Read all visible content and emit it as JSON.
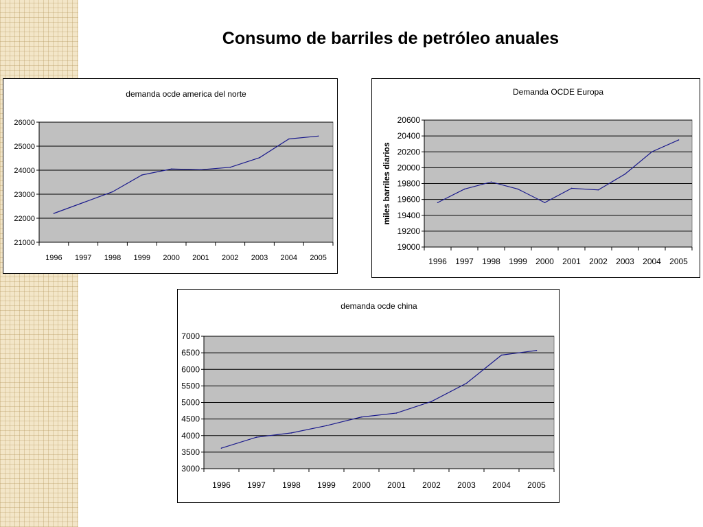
{
  "page": {
    "title": "Consumo de barriles de petróleo anuales"
  },
  "chart_data": [
    {
      "type": "line",
      "title": "demanda ocde america del norte",
      "ylabel": "",
      "xlabel": "",
      "categories": [
        "1996",
        "1997",
        "1998",
        "1999",
        "2000",
        "2001",
        "2002",
        "2003",
        "2004",
        "2005"
      ],
      "series": [
        {
          "values": [
            22200,
            22650,
            23100,
            23800,
            24050,
            24020,
            24120,
            24520,
            25300,
            25420
          ],
          "color": "#1a1a8c"
        }
      ],
      "ylim": [
        21000,
        26000
      ],
      "yticks": [
        21000,
        22000,
        23000,
        24000,
        25000,
        26000
      ],
      "grid": true,
      "plot_bg": "#c0c0c0"
    },
    {
      "type": "line",
      "title": "Demanda OCDE Europa",
      "ylabel": "miles barriles diarios",
      "xlabel": "",
      "categories": [
        "1996",
        "1997",
        "1998",
        "1999",
        "2000",
        "2001",
        "2002",
        "2003",
        "2004",
        "2005"
      ],
      "series": [
        {
          "values": [
            19560,
            19730,
            19820,
            19730,
            19560,
            19740,
            19720,
            19920,
            20200,
            20350
          ],
          "color": "#1a1a8c"
        }
      ],
      "ylim": [
        19000,
        20600
      ],
      "yticks": [
        19000,
        19200,
        19400,
        19600,
        19800,
        20000,
        20200,
        20400,
        20600
      ],
      "grid": true,
      "plot_bg": "#c0c0c0"
    },
    {
      "type": "line",
      "title": "demanda ocde china",
      "ylabel": "",
      "xlabel": "",
      "categories": [
        "1996",
        "1997",
        "1998",
        "1999",
        "2000",
        "2001",
        "2002",
        "2003",
        "2004",
        "2005"
      ],
      "series": [
        {
          "values": [
            3620,
            3950,
            4080,
            4300,
            4560,
            4680,
            5030,
            5580,
            6430,
            6570
          ],
          "color": "#1a1a8c"
        }
      ],
      "ylim": [
        3000,
        7000
      ],
      "yticks": [
        3000,
        3500,
        4000,
        4500,
        5000,
        5500,
        6000,
        6500,
        7000
      ],
      "grid": true,
      "plot_bg": "#c0c0c0"
    }
  ]
}
